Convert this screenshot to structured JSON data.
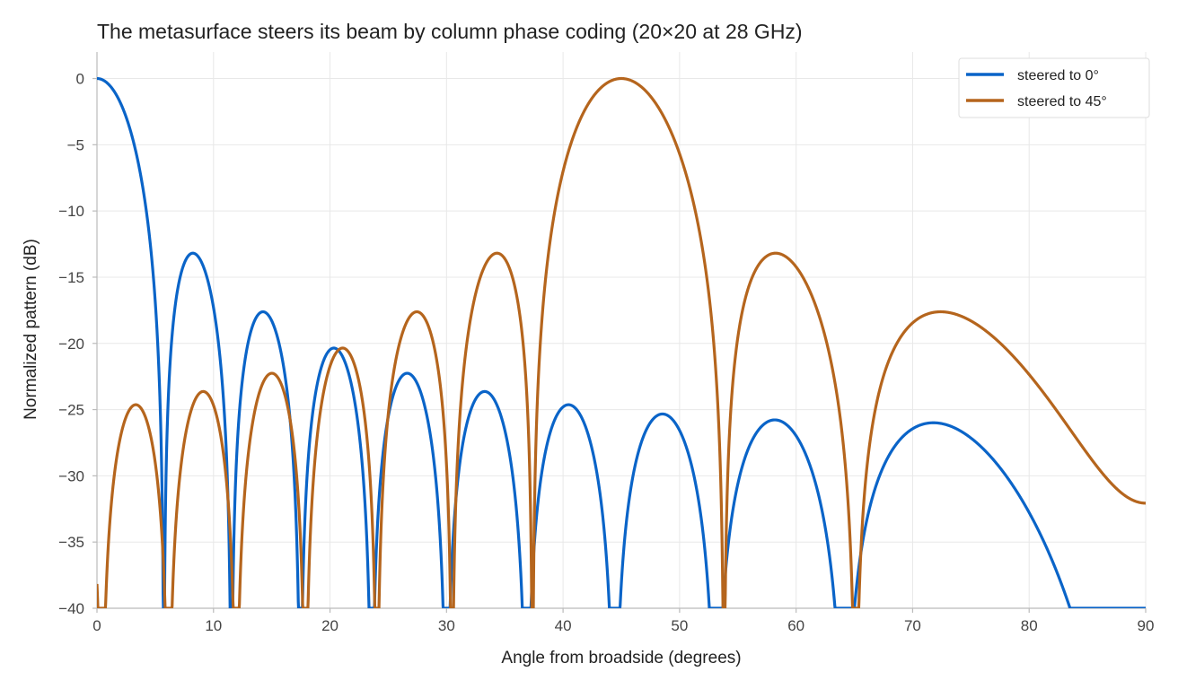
{
  "chart_data": {
    "type": "line",
    "title": "The metasurface steers its beam by column phase coding (20×20 at 28 GHz)",
    "xlabel": "Angle from broadside (degrees)",
    "ylabel": "Normalized pattern (dB)",
    "xlim": [
      0,
      90
    ],
    "ylim": [
      -40,
      2
    ],
    "xticks": [
      0,
      10,
      20,
      30,
      40,
      50,
      60,
      70,
      80,
      90
    ],
    "yticks": [
      0,
      -5,
      -10,
      -15,
      -20,
      -25,
      -30,
      -35,
      -40
    ],
    "xtick_labels": [
      "0",
      "10",
      "20",
      "30",
      "40",
      "50",
      "60",
      "70",
      "80",
      "90"
    ],
    "ytick_labels": [
      "0",
      "−5",
      "−10",
      "−15",
      "−20",
      "−25",
      "−30",
      "−35",
      "−40"
    ],
    "grid": true,
    "legend_position": "top-right",
    "array": {
      "elements_per_row": 20,
      "spacing_wavelengths": 0.5,
      "floor_db": -40
    },
    "series": [
      {
        "name": "steered to 0°",
        "steer_deg": 0,
        "color": "#0a64c8"
      },
      {
        "name": "steered to 45°",
        "steer_deg": 45,
        "color": "#b5651d"
      }
    ]
  }
}
